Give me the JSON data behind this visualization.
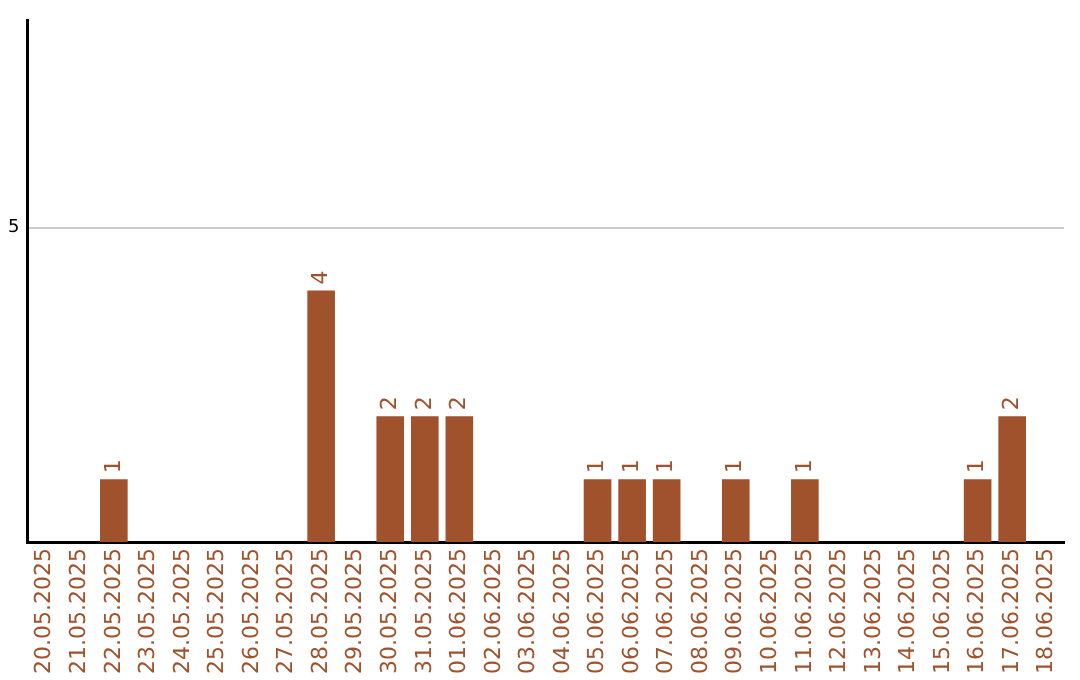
{
  "chart_data": {
    "type": "bar",
    "categories": [
      "20.05.2025",
      "21.05.2025",
      "22.05.2025",
      "23.05.2025",
      "24.05.2025",
      "25.05.2025",
      "26.05.2025",
      "27.05.2025",
      "28.05.2025",
      "29.05.2025",
      "30.05.2025",
      "31.05.2025",
      "01.06.2025",
      "02.06.2025",
      "03.06.2025",
      "04.06.2025",
      "05.06.2025",
      "06.06.2025",
      "07.06.2025",
      "08.06.2025",
      "09.06.2025",
      "10.06.2025",
      "11.06.2025",
      "12.06.2025",
      "13.06.2025",
      "14.06.2025",
      "15.06.2025",
      "16.06.2025",
      "17.06.2025",
      "18.06.2025"
    ],
    "values": [
      null,
      null,
      1,
      null,
      null,
      null,
      null,
      null,
      4,
      null,
      2,
      2,
      2,
      null,
      null,
      null,
      1,
      1,
      1,
      null,
      1,
      null,
      1,
      null,
      null,
      null,
      null,
      1,
      2,
      null
    ],
    "color": "#a0522d",
    "ylim": [
      0,
      8.3
    ],
    "yticks": [
      5
    ],
    "grid": "y",
    "data_labels": true,
    "legend": false
  }
}
